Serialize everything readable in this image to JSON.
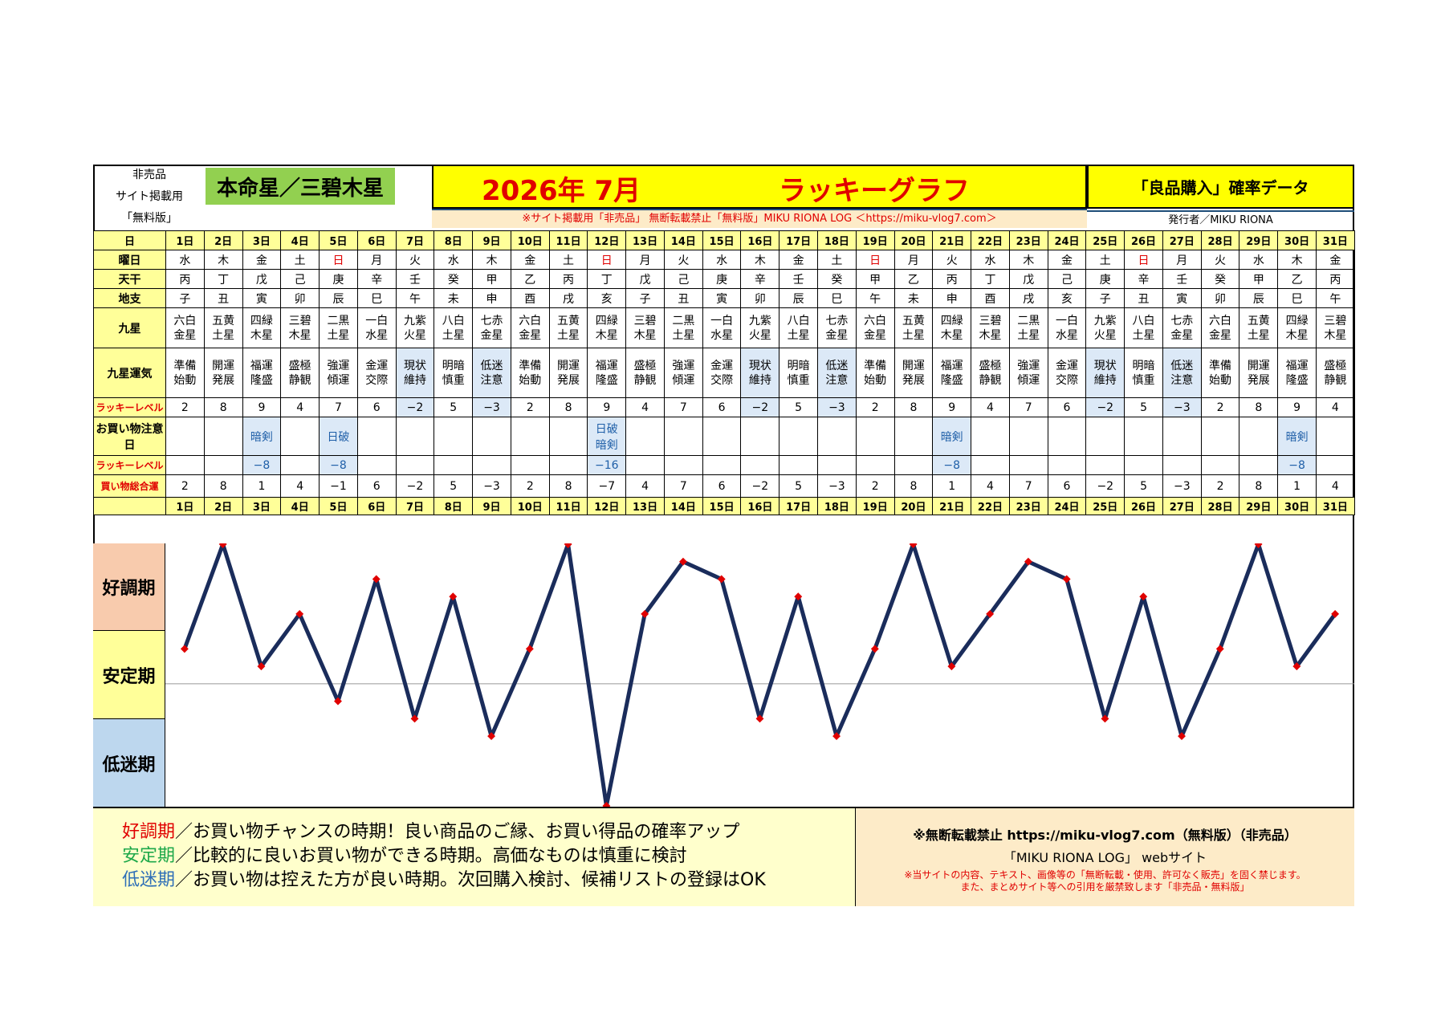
{
  "header": {
    "left_lines": [
      "非売品",
      "サイト掲載用",
      "「無料版」"
    ],
    "honmei": "本命星／三碧木星",
    "year_month": "2026年 7月",
    "title": "ラッキーグラフ",
    "right_title": "「良品購入」確率データ",
    "notice": "※サイト掲載用「非売品」 無断転載禁止「無料版」MIKU RIONA LOG ＜https://miku-vlog7.com＞",
    "publisher": "発行者／MIKU RIONA"
  },
  "row_labels": {
    "day": "日",
    "weekday": "曜日",
    "tenkan": "天干",
    "chishi": "地支",
    "kusei": "九星",
    "kusei_unki": "九星運気",
    "lucky_level": "ラッキーレベル",
    "shop_caution": "お買い物注意日",
    "lucky_level2": "ラッキーレベル",
    "total": "買い物総合運"
  },
  "days": [
    "1日",
    "2日",
    "3日",
    "4日",
    "5日",
    "6日",
    "7日",
    "8日",
    "9日",
    "10日",
    "11日",
    "12日",
    "13日",
    "14日",
    "15日",
    "16日",
    "17日",
    "18日",
    "19日",
    "20日",
    "21日",
    "22日",
    "23日",
    "24日",
    "25日",
    "26日",
    "27日",
    "28日",
    "29日",
    "30日",
    "31日"
  ],
  "weekdays": [
    "水",
    "木",
    "金",
    "土",
    "日",
    "月",
    "火",
    "水",
    "木",
    "金",
    "土",
    "日",
    "月",
    "火",
    "水",
    "木",
    "金",
    "土",
    "日",
    "月",
    "火",
    "水",
    "木",
    "金",
    "土",
    "日",
    "月",
    "火",
    "水",
    "木",
    "金"
  ],
  "tenkan": [
    "丙",
    "丁",
    "戊",
    "己",
    "庚",
    "辛",
    "壬",
    "癸",
    "甲",
    "乙",
    "丙",
    "丁",
    "戊",
    "己",
    "庚",
    "辛",
    "壬",
    "癸",
    "甲",
    "乙",
    "丙",
    "丁",
    "戊",
    "己",
    "庚",
    "辛",
    "壬",
    "癸",
    "甲",
    "乙",
    "丙"
  ],
  "chishi": [
    "子",
    "丑",
    "寅",
    "卯",
    "辰",
    "巳",
    "午",
    "未",
    "申",
    "酉",
    "戌",
    "亥",
    "子",
    "丑",
    "寅",
    "卯",
    "辰",
    "巳",
    "午",
    "未",
    "申",
    "酉",
    "戌",
    "亥",
    "子",
    "丑",
    "寅",
    "卯",
    "辰",
    "巳",
    "午"
  ],
  "kusei": [
    [
      "六白",
      "金星"
    ],
    [
      "五黄",
      "土星"
    ],
    [
      "四緑",
      "木星"
    ],
    [
      "三碧",
      "木星"
    ],
    [
      "二黒",
      "土星"
    ],
    [
      "一白",
      "水星"
    ],
    [
      "九紫",
      "火星"
    ],
    [
      "八白",
      "土星"
    ],
    [
      "七赤",
      "金星"
    ],
    [
      "六白",
      "金星"
    ],
    [
      "五黄",
      "土星"
    ],
    [
      "四緑",
      "木星"
    ],
    [
      "三碧",
      "木星"
    ],
    [
      "二黒",
      "土星"
    ],
    [
      "一白",
      "水星"
    ],
    [
      "九紫",
      "火星"
    ],
    [
      "八白",
      "土星"
    ],
    [
      "七赤",
      "金星"
    ],
    [
      "六白",
      "金星"
    ],
    [
      "五黄",
      "土星"
    ],
    [
      "四緑",
      "木星"
    ],
    [
      "三碧",
      "木星"
    ],
    [
      "二黒",
      "土星"
    ],
    [
      "一白",
      "水星"
    ],
    [
      "九紫",
      "火星"
    ],
    [
      "八白",
      "土星"
    ],
    [
      "七赤",
      "金星"
    ],
    [
      "六白",
      "金星"
    ],
    [
      "五黄",
      "土星"
    ],
    [
      "四緑",
      "木星"
    ],
    [
      "三碧",
      "木星"
    ]
  ],
  "unki": [
    [
      "準備",
      "始動"
    ],
    [
      "開運",
      "発展"
    ],
    [
      "福運",
      "隆盛"
    ],
    [
      "盛極",
      "静観"
    ],
    [
      "強運",
      "傾運"
    ],
    [
      "金運",
      "交際"
    ],
    [
      "現状",
      "維持"
    ],
    [
      "明暗",
      "慎重"
    ],
    [
      "低迷",
      "注意"
    ],
    [
      "準備",
      "始動"
    ],
    [
      "開運",
      "発展"
    ],
    [
      "福運",
      "隆盛"
    ],
    [
      "盛極",
      "静観"
    ],
    [
      "強運",
      "傾運"
    ],
    [
      "金運",
      "交際"
    ],
    [
      "現状",
      "維持"
    ],
    [
      "明暗",
      "慎重"
    ],
    [
      "低迷",
      "注意"
    ],
    [
      "準備",
      "始動"
    ],
    [
      "開運",
      "発展"
    ],
    [
      "福運",
      "隆盛"
    ],
    [
      "盛極",
      "静観"
    ],
    [
      "強運",
      "傾運"
    ],
    [
      "金運",
      "交際"
    ],
    [
      "現状",
      "維持"
    ],
    [
      "明暗",
      "慎重"
    ],
    [
      "低迷",
      "注意"
    ],
    [
      "準備",
      "始動"
    ],
    [
      "開運",
      "発展"
    ],
    [
      "福運",
      "隆盛"
    ],
    [
      "盛極",
      "静観"
    ]
  ],
  "lucky_level": [
    "2",
    "8",
    "9",
    "4",
    "7",
    "6",
    "−2",
    "5",
    "−3",
    "2",
    "8",
    "9",
    "4",
    "7",
    "6",
    "−2",
    "5",
    "−3",
    "2",
    "8",
    "9",
    "4",
    "7",
    "6",
    "−2",
    "5",
    "−3",
    "2",
    "8",
    "9",
    "4"
  ],
  "shop_caution": [
    "",
    "",
    "暗剣",
    "",
    "日破",
    "",
    "",
    "",
    "",
    "",
    "",
    "日破\n暗剣",
    "",
    "",
    "",
    "",
    "",
    "",
    "",
    "",
    "暗剣",
    "",
    "",
    "",
    "",
    "",
    "",
    "",
    "",
    "暗剣",
    ""
  ],
  "lucky_level2": [
    "",
    "",
    "−8",
    "",
    "−8",
    "",
    "",
    "",
    "",
    "",
    "",
    "−16",
    "",
    "",
    "",
    "",
    "",
    "",
    "",
    "",
    "−8",
    "",
    "",
    "",
    "",
    "",
    "",
    "",
    "",
    "−8",
    ""
  ],
  "total": [
    "2",
    "8",
    "1",
    "4",
    "−1",
    "6",
    "−2",
    "5",
    "−3",
    "2",
    "8",
    "−7",
    "4",
    "7",
    "6",
    "−2",
    "5",
    "−3",
    "2",
    "8",
    "1",
    "4",
    "7",
    "6",
    "−2",
    "5",
    "−3",
    "2",
    "8",
    "1",
    "4"
  ],
  "zones": {
    "good": "好調期",
    "stable": "安定期",
    "low": "低迷期"
  },
  "legend": {
    "good_term": "好調期",
    "good_text": "／お買い物チャンスの時期！良い商品のご縁、お買い得品の確率アップ",
    "stable_term": "安定期",
    "stable_text": "／比較的に良いお買い物ができる時期。高価なものは慎重に検討",
    "low_term": "低迷期",
    "low_text": "／お買い物は控えた方が良い時期。次回購入検討、候補リストの登録はOK"
  },
  "footer_right": {
    "line1": "※無断転載禁止 https://miku-vlog7.com（無料版）（非売品）",
    "line2": "「MIKU RIONA LOG」 webサイト",
    "line3": "※当サイトの内容、テキスト、画像等の「無断転載・使用、許可なく販売」を固く禁じます。",
    "line4": "また、まとめサイト等への引用を厳禁致します「非売品・無料版」"
  },
  "colors": {
    "line": "#1a2c5b",
    "marker": "#e00000",
    "good": "#f8cbad",
    "stable": "#ffff99",
    "low": "#bdd7ee",
    "legend_good": "#e00000",
    "legend_stable": "#1ea84a",
    "legend_low": "#2f6fb7"
  },
  "chart_data": {
    "type": "line",
    "categories": [
      "1日",
      "2日",
      "3日",
      "4日",
      "5日",
      "6日",
      "7日",
      "8日",
      "9日",
      "10日",
      "11日",
      "12日",
      "13日",
      "14日",
      "15日",
      "16日",
      "17日",
      "18日",
      "19日",
      "20日",
      "21日",
      "22日",
      "23日",
      "24日",
      "25日",
      "26日",
      "27日",
      "28日",
      "29日",
      "30日",
      "31日"
    ],
    "series": [
      {
        "values": [
          2,
          8,
          1,
          4,
          -1,
          6,
          -2,
          5,
          -3,
          2,
          8,
          -7,
          4,
          7,
          6,
          -2,
          5,
          -3,
          2,
          8,
          1,
          4,
          7,
          6,
          -2,
          5,
          -3,
          2,
          8,
          1,
          4
        ]
      }
    ],
    "ylim": [
      -7,
      8
    ],
    "reference_line": 0
  }
}
